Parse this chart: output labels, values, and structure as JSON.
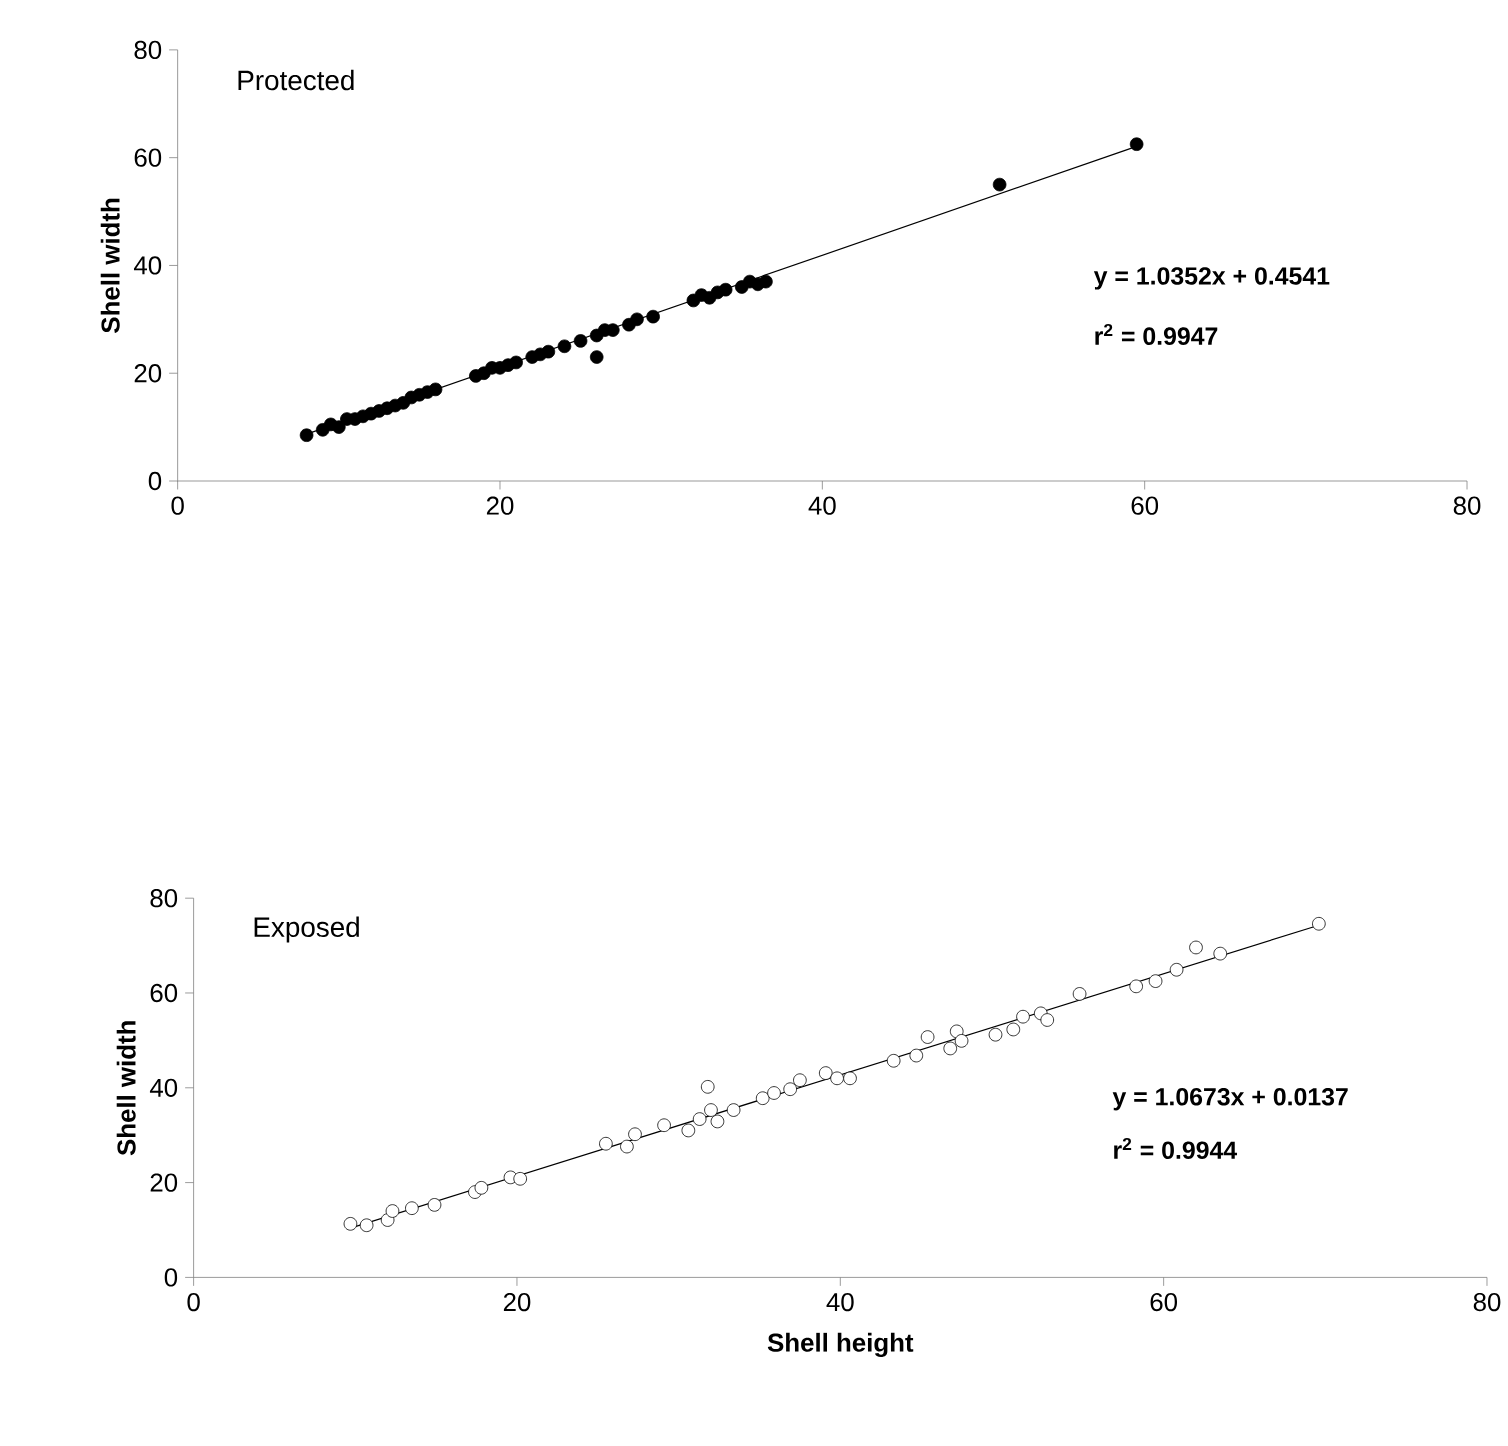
{
  "chart_data": [
    {
      "type": "scatter",
      "ylabel": "Shell width",
      "xlim": [
        0,
        80
      ],
      "ylim": [
        0,
        80
      ],
      "xticks": [
        0,
        20,
        40,
        60,
        80
      ],
      "yticks": [
        0,
        20,
        40,
        60,
        80
      ],
      "annotations": [
        "Protected",
        "y = 1.0352x + 0.4541",
        "r$^{2}$ = 0.9947"
      ],
      "series": [
        {
          "marker": "circle",
          "color": "#000000",
          "x": [
            8,
            9,
            9.5,
            10,
            10.5,
            11,
            11.5,
            12,
            12.5,
            13,
            13.5,
            14,
            14.5,
            15,
            15.5,
            16,
            18.5,
            19,
            19.5,
            20,
            20.5,
            21,
            22,
            22.5,
            23,
            24,
            25,
            26,
            26.5,
            26,
            27,
            28,
            28.5,
            29.5,
            32,
            32.5,
            33,
            33.5,
            34,
            35,
            35.5,
            36,
            36.5,
            51,
            59.5
          ],
          "values": [
            8.5,
            9.5,
            10.5,
            10,
            11.5,
            11.5,
            12,
            12.5,
            13,
            13.5,
            14,
            14.5,
            15.5,
            16,
            16.5,
            17,
            19.5,
            20,
            21,
            21,
            21.5,
            22,
            23,
            23.5,
            24,
            25,
            26,
            27,
            28,
            23,
            28,
            29,
            30,
            30.5,
            33.5,
            34.5,
            34,
            35,
            35.5,
            36,
            37,
            36.5,
            37,
            55,
            62.5
          ]
        },
        {
          "type": "line",
          "marker": "none",
          "color": "#000000",
          "x": [
            8,
            59.5
          ],
          "values": [
            8.7,
            62.1
          ]
        }
      ]
    },
    {
      "type": "scatter",
      "xlabel": "Shell height",
      "ylabel": "Shell width",
      "xlim": [
        0,
        80
      ],
      "ylim": [
        0,
        80
      ],
      "xticks": [
        0,
        20,
        40,
        60,
        80
      ],
      "yticks": [
        0,
        20,
        40,
        60,
        80
      ],
      "annotations": [
        "Exposed",
        "y = 1.0673x + 0.0137",
        "r$^{2}$ = 0.9944"
      ],
      "series": [
        {
          "marker": "circle",
          "color": "#ffffff",
          "x": [
            9.7,
            10.7,
            12,
            12.3,
            13.5,
            14.9,
            17.4,
            17.8,
            19.6,
            20.2,
            25.5,
            26.8,
            27.3,
            29.1,
            30.6,
            31.3,
            31.8,
            32,
            32.4,
            33.4,
            35.2,
            35.9,
            36.9,
            37.5,
            39.1,
            39.8,
            40.6,
            43.3,
            44.7,
            45.4,
            46.8,
            47.2,
            47.5,
            49.6,
            50.7,
            51.3,
            52.4,
            52.8,
            54.8,
            58.3,
            59.5,
            60.8,
            62,
            63.5,
            69.6
          ],
          "values": [
            11.3,
            11,
            12.1,
            14,
            14.6,
            15.3,
            18,
            18.9,
            21.1,
            20.8,
            28.2,
            27.6,
            30.2,
            32.1,
            31,
            33.4,
            40.2,
            35.3,
            32.9,
            35.3,
            37.8,
            38.9,
            39.7,
            41.6,
            43.1,
            42,
            42,
            45.7,
            46.8,
            50.7,
            48.3,
            51.9,
            49.9,
            51.2,
            52.3,
            55,
            55.7,
            54.3,
            59.8,
            61.4,
            62.5,
            64.9,
            69.6,
            68.3,
            74.6
          ]
        },
        {
          "type": "line",
          "marker": "none",
          "color": "#000000",
          "x": [
            9.7,
            69.6
          ],
          "values": [
            10.4,
            74.3
          ]
        }
      ]
    }
  ]
}
